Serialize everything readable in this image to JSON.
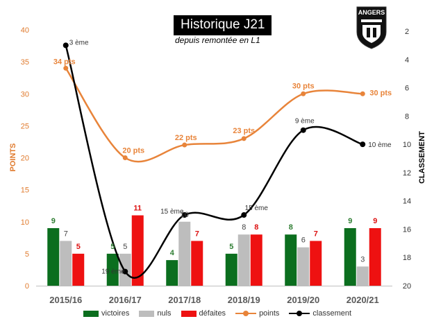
{
  "title": "Historique J21",
  "subtitle": "depuis remontée en L1",
  "logo_text": "ANGERS",
  "chart_data": {
    "type": "bar",
    "categories": [
      "2015/16",
      "2016/17",
      "2017/18",
      "2018/19",
      "2019/20",
      "2020/21"
    ],
    "series": [
      {
        "name": "victoires",
        "kind": "bar",
        "color": "#0b6e1e",
        "label_color": "#2e7d32",
        "values": [
          9,
          5,
          4,
          5,
          8,
          9
        ]
      },
      {
        "name": "nuls",
        "kind": "bar",
        "color": "#bdbdbd",
        "label_color": "#444444",
        "values": [
          7,
          5,
          10,
          8,
          6,
          3
        ]
      },
      {
        "name": "défaites",
        "kind": "bar",
        "color": "#ee1111",
        "label_color": "#dd1111",
        "values": [
          5,
          11,
          7,
          8,
          7,
          9
        ]
      },
      {
        "name": "points",
        "kind": "line",
        "color": "#e8843a",
        "values": [
          34,
          20,
          22,
          23,
          30,
          30
        ],
        "labels": [
          "34 pts",
          "20 pts",
          "22 pts",
          "23 pts",
          "30 pts",
          "30 pts"
        ]
      },
      {
        "name": "classement",
        "kind": "line",
        "axis": "right",
        "color": "#000000",
        "values": [
          3,
          19,
          15,
          15,
          9,
          10
        ],
        "labels": [
          "3 ème",
          "19 ème",
          "15 ème",
          "15 ème",
          "9 ème",
          "10 ème"
        ]
      }
    ],
    "ylabel": "POINTS",
    "y2label": "CLASSEMENT",
    "ylim": [
      0,
      40
    ],
    "yticks": [
      0,
      5,
      10,
      15,
      20,
      25,
      30,
      35,
      40
    ],
    "y2lim": [
      2,
      20
    ],
    "y2ticks": [
      2,
      4,
      6,
      8,
      10,
      12,
      14,
      16,
      18,
      20
    ],
    "y2_inverted": true,
    "grid": false,
    "legend_position": "bottom",
    "left_axis_color": "#e07b2e"
  }
}
